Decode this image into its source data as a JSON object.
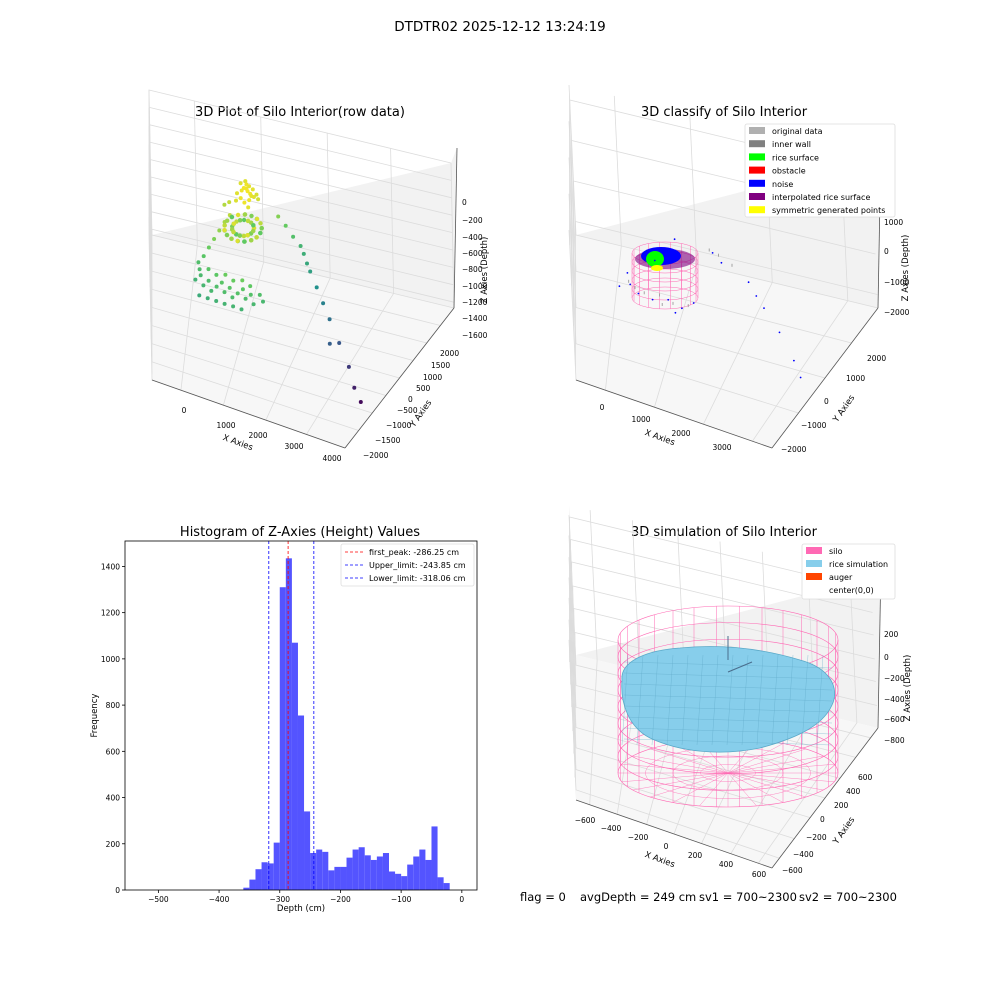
{
  "figure": {
    "suptitle": "DTDTR02 2025-12-12 13:24:19",
    "footer": {
      "flag": "flag = 0",
      "avg": "avgDepth = 249 cm",
      "sv1": "sv1 = 700~2300",
      "sv2": "sv2 = 700~2300"
    }
  },
  "chart_data": [
    {
      "type": "scatter",
      "title": "3D Plot of Silo Interior(row data)",
      "xlabel": "X Axies",
      "ylabel": "Y Axies",
      "zlabel": "Z Axies (Depth)",
      "xticks": [
        "0",
        "1000",
        "2000",
        "3000",
        "4000"
      ],
      "yticks": [
        "−2000",
        "−1500",
        "−1000",
        "−500",
        "0",
        "500",
        "1000",
        "1500",
        "2000"
      ],
      "zticks": [
        "0",
        "−200",
        "−400",
        "−600",
        "−800",
        "−1000",
        "−1200",
        "−1400",
        "−1600"
      ],
      "xlim": [
        -500,
        4000
      ],
      "ylim": [
        -2000,
        2000
      ],
      "zlim": [
        -1700,
        0
      ],
      "colormap": "viridis",
      "points": [
        [
          -300,
          200,
          -1450
        ],
        [
          -200,
          300,
          -1430
        ],
        [
          -100,
          150,
          -1470
        ],
        [
          0,
          250,
          -1440
        ],
        [
          100,
          100,
          -1480
        ],
        [
          200,
          200,
          -1460
        ],
        [
          300,
          300,
          -1450
        ],
        [
          400,
          150,
          -1470
        ],
        [
          500,
          250,
          -1455
        ],
        [
          600,
          100,
          -1475
        ],
        [
          700,
          200,
          -1465
        ],
        [
          800,
          300,
          -1450
        ],
        [
          900,
          150,
          -1470
        ],
        [
          1000,
          250,
          -1460
        ],
        [
          1100,
          100,
          -1480
        ],
        [
          -250,
          400,
          -1420
        ],
        [
          -50,
          450,
          -1410
        ],
        [
          150,
          400,
          -1430
        ],
        [
          350,
          450,
          -1420
        ],
        [
          550,
          400,
          -1440
        ],
        [
          750,
          450,
          -1430
        ],
        [
          950,
          400,
          -1445
        ],
        [
          -150,
          -50,
          -1490
        ],
        [
          50,
          -50,
          -1495
        ],
        [
          250,
          -50,
          -1500
        ],
        [
          450,
          -50,
          -1505
        ],
        [
          650,
          -50,
          -1500
        ],
        [
          850,
          -50,
          -1510
        ],
        [
          1200,
          300,
          -1460
        ],
        [
          1300,
          200,
          -1470
        ],
        [
          -300,
          500,
          -1380
        ],
        [
          -200,
          600,
          -1300
        ],
        [
          -100,
          700,
          -1150
        ],
        [
          0,
          800,
          -1000
        ],
        [
          100,
          900,
          -850
        ],
        [
          200,
          1000,
          -700
        ],
        [
          300,
          1100,
          -600
        ],
        [
          150,
          1200,
          -500
        ],
        [
          250,
          1250,
          -450
        ],
        [
          400,
          1400,
          -350
        ],
        [
          500,
          1450,
          -300
        ],
        [
          600,
          1500,
          -280
        ],
        [
          700,
          1450,
          -320
        ],
        [
          800,
          1400,
          -300
        ],
        [
          450,
          1550,
          -250
        ],
        [
          550,
          1600,
          -220
        ],
        [
          650,
          1550,
          -260
        ],
        [
          750,
          1500,
          -240
        ],
        [
          850,
          1450,
          -280
        ],
        [
          500,
          1350,
          -380
        ],
        [
          600,
          1300,
          -400
        ],
        [
          700,
          1350,
          -360
        ],
        [
          400,
          1300,
          -420
        ],
        [
          900,
          1400,
          -330
        ],
        [
          550,
          1450,
          -200
        ],
        [
          650,
          1400,
          -180
        ],
        [
          750,
          1350,
          -210
        ],
        [
          600,
          1500,
          -150
        ],
        [
          700,
          1250,
          -430
        ],
        [
          1400,
          1300,
          -500
        ],
        [
          1600,
          1200,
          -550
        ],
        [
          1800,
          1100,
          -650
        ],
        [
          2000,
          1000,
          -700
        ],
        [
          2100,
          900,
          -750
        ],
        [
          2300,
          700,
          -900
        ],
        [
          2500,
          500,
          -1000
        ],
        [
          2700,
          300,
          -1100
        ],
        [
          2900,
          100,
          -1200
        ],
        [
          3200,
          -200,
          -1350
        ],
        [
          3500,
          -500,
          -1500
        ],
        [
          3700,
          -800,
          -1600
        ],
        [
          3900,
          -1000,
          -1650
        ],
        [
          3000,
          -300,
          -1300
        ],
        [
          2200,
          800,
          -850
        ]
      ]
    },
    {
      "type": "scatter",
      "title": "3D classify of Silo Interior",
      "xlabel": "X Axies",
      "ylabel": "Y Axies",
      "zlabel": "Z Axies (Depth)",
      "xticks": [
        "0",
        "1000",
        "2000",
        "3000"
      ],
      "yticks": [
        "−2000",
        "−1000",
        "0",
        "1000",
        "2000"
      ],
      "zticks": [
        "1000",
        "0",
        "−1000",
        "−2000"
      ],
      "xlim": [
        -500,
        3700
      ],
      "ylim": [
        -2200,
        2200
      ],
      "zlim": [
        -2800,
        1000
      ],
      "legend": [
        {
          "label": "original data",
          "color": "#b0b0b0"
        },
        {
          "label": "inner wall",
          "color": "#808080"
        },
        {
          "label": "rice surface",
          "color": "#00ff00"
        },
        {
          "label": "obstacle",
          "color": "#ff0000"
        },
        {
          "label": "noise",
          "color": "#0000ff"
        },
        {
          "label": "interpolated rice surface",
          "color": "#800080"
        },
        {
          "label": "symmetric generated points",
          "color": "#ffff00"
        }
      ],
      "legend_loc": "upper right",
      "cylinder": {
        "radius": 800,
        "z_top": 0,
        "z_bottom": -800
      },
      "noise_points": [
        [
          -400,
          200,
          -1500
        ],
        [
          -200,
          300,
          -1450
        ],
        [
          0,
          150,
          -1480
        ],
        [
          300,
          100,
          -1470
        ],
        [
          600,
          200,
          -1460
        ],
        [
          900,
          100,
          -1480
        ],
        [
          1100,
          300,
          -1450
        ],
        [
          200,
          800,
          -800
        ],
        [
          500,
          1300,
          -400
        ],
        [
          1500,
          1100,
          -500
        ],
        [
          2500,
          500,
          -1000
        ],
        [
          2900,
          100,
          -1200
        ],
        [
          3300,
          -400,
          -1400
        ],
        [
          3500,
          -700,
          -1550
        ],
        [
          2100,
          900,
          -700
        ],
        [
          -300,
          500,
          -1300
        ],
        [
          800,
          -50,
          -1490
        ],
        [
          1300,
          1200,
          -300
        ],
        [
          2300,
          700,
          -900
        ]
      ],
      "gray_points": [
        [
          -100,
          250,
          -1440
        ],
        [
          100,
          200,
          -1470
        ],
        [
          400,
          250,
          -1455
        ],
        [
          700,
          150,
          -1475
        ],
        [
          1000,
          200,
          -1465
        ],
        [
          1200,
          1300,
          -450
        ],
        [
          1400,
          1250,
          -480
        ],
        [
          1700,
          1150,
          -600
        ],
        [
          -250,
          350,
          -1420
        ],
        [
          500,
          50,
          -1480
        ]
      ]
    },
    {
      "type": "bar",
      "title": "Histogram of Z-Axies (Height) Values",
      "xlabel": "Depth (cm)",
      "ylabel": "Frequency",
      "xlim": [
        -555,
        25
      ],
      "ylim": [
        0,
        1510
      ],
      "xticks": [
        -500,
        -400,
        -300,
        -200,
        -100,
        0
      ],
      "xtick_labels": [
        "−500",
        "−400",
        "−300",
        "−200",
        "−100",
        "0"
      ],
      "yticks": [
        0,
        200,
        400,
        600,
        800,
        1000,
        1200,
        1400
      ],
      "bar_color": "#4b4bff",
      "bin_width": 10,
      "bins": [
        {
          "x": -355,
          "v": 10
        },
        {
          "x": -345,
          "v": 45
        },
        {
          "x": -335,
          "v": 90
        },
        {
          "x": -325,
          "v": 120
        },
        {
          "x": -315,
          "v": 115
        },
        {
          "x": -305,
          "v": 205
        },
        {
          "x": -295,
          "v": 1310
        },
        {
          "x": -285,
          "v": 1435
        },
        {
          "x": -275,
          "v": 1070
        },
        {
          "x": -265,
          "v": 755
        },
        {
          "x": -255,
          "v": 340
        },
        {
          "x": -245,
          "v": 160
        },
        {
          "x": -235,
          "v": 175
        },
        {
          "x": -225,
          "v": 165
        },
        {
          "x": -215,
          "v": 85
        },
        {
          "x": -205,
          "v": 100
        },
        {
          "x": -195,
          "v": 100
        },
        {
          "x": -185,
          "v": 140
        },
        {
          "x": -175,
          "v": 175
        },
        {
          "x": -165,
          "v": 185
        },
        {
          "x": -155,
          "v": 150
        },
        {
          "x": -145,
          "v": 130
        },
        {
          "x": -135,
          "v": 145
        },
        {
          "x": -125,
          "v": 160
        },
        {
          "x": -115,
          "v": 80
        },
        {
          "x": -105,
          "v": 70
        },
        {
          "x": -95,
          "v": 60
        },
        {
          "x": -85,
          "v": 110
        },
        {
          "x": -75,
          "v": 145
        },
        {
          "x": -65,
          "v": 175
        },
        {
          "x": -55,
          "v": 130
        },
        {
          "x": -45,
          "v": 275
        },
        {
          "x": -35,
          "v": 55
        },
        {
          "x": -25,
          "v": 30
        }
      ],
      "lines": [
        {
          "label": "first_peak: -286.25 cm",
          "value": -286.25,
          "color": "#ff0000"
        },
        {
          "label": "Upper_limit: -243.85 cm",
          "value": -243.85,
          "color": "#0000ff"
        },
        {
          "label": "Lower_limit: -318.06 cm",
          "value": -318.06,
          "color": "#0000ff"
        }
      ],
      "legend_loc": "upper right"
    },
    {
      "type": "area",
      "title": "3D simulation of Silo Interior",
      "xlabel": "X Axies",
      "ylabel": "Y Axies",
      "zlabel": "Z Axies (Depth)",
      "xticks": [
        "−600",
        "−400",
        "−200",
        "0",
        "200",
        "400",
        "600"
      ],
      "yticks": [
        "−600",
        "−400",
        "−200",
        "0",
        "200",
        "400",
        "600"
      ],
      "zticks": [
        "200",
        "0",
        "−200",
        "−400",
        "−600",
        "−800"
      ],
      "xlim": [
        -700,
        700
      ],
      "ylim": [
        -700,
        700
      ],
      "zlim": [
        -1000,
        300
      ],
      "legend": [
        {
          "label": "silo",
          "color": "#ff69b4"
        },
        {
          "label": "rice simulation",
          "color": "#87ceeb"
        },
        {
          "label": "auger",
          "color": "#ff4500"
        },
        {
          "label": "center(0,0)",
          "color": ""
        }
      ],
      "legend_loc": "upper right",
      "silo": {
        "radius": 600,
        "z_top": 200,
        "z_bottom": -1000
      },
      "surface_depth": -249
    }
  ]
}
